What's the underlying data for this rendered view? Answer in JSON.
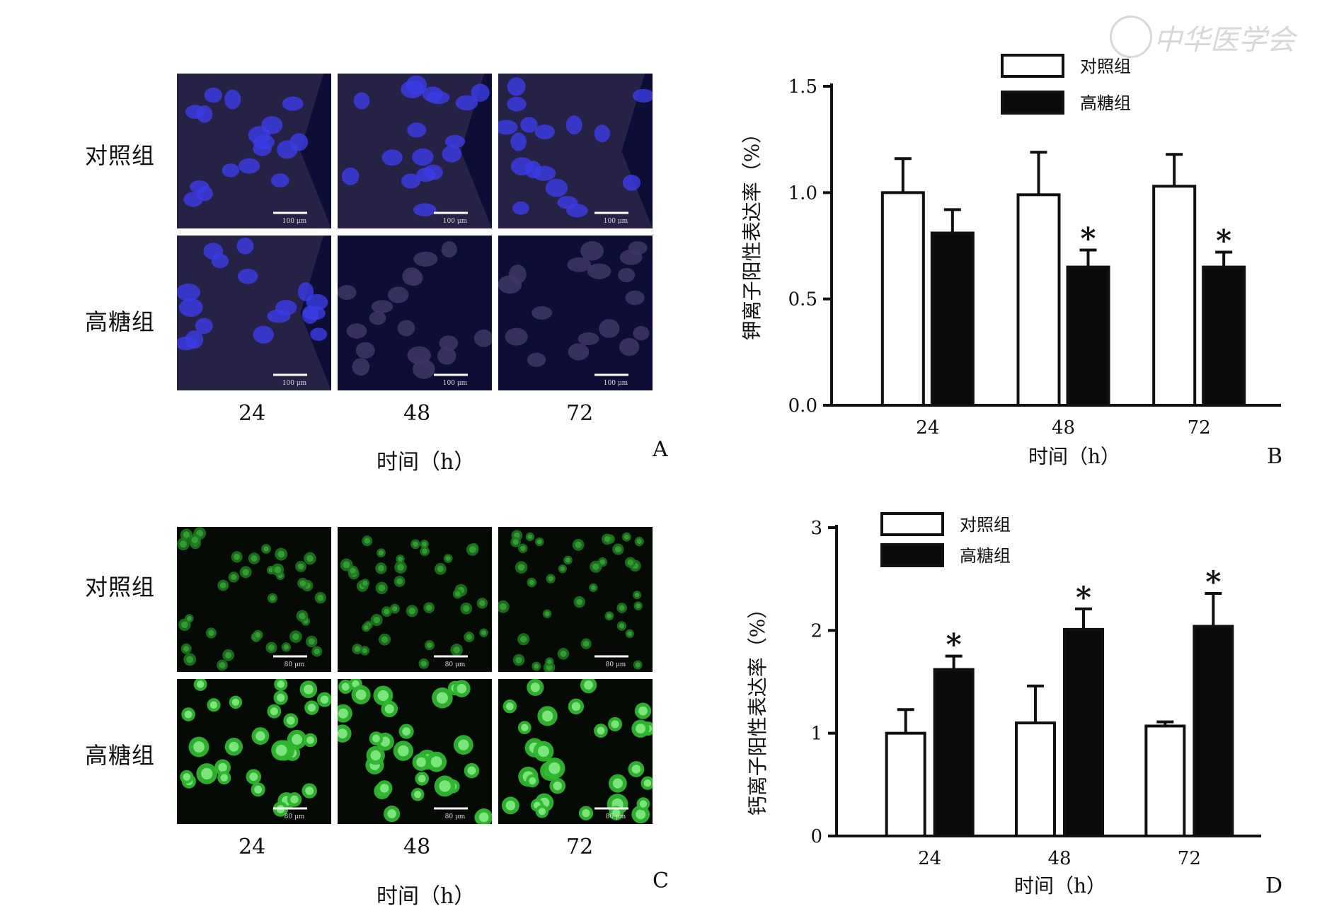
{
  "watermark": {
    "text": "中华医学会"
  },
  "panel_a": {
    "letter": "A",
    "rows": [
      "对照组",
      "高糖组"
    ],
    "cols": [
      "24",
      "48",
      "72"
    ],
    "xlabel": "时间（h）",
    "scale_label": "100 μm",
    "colors": {
      "bg": "#262246",
      "dark": "#0d0d35",
      "cell": "#3c3ce6"
    }
  },
  "panel_c": {
    "letter": "C",
    "rows": [
      "对照组",
      "高糖组"
    ],
    "cols": [
      "24",
      "48",
      "72"
    ],
    "xlabel": "时间（h）",
    "scale_label": "80 μm",
    "colors": {
      "bg": "#050a05",
      "cell": "#3fd23f"
    }
  },
  "chart_data": [
    {
      "type": "bar",
      "panel": "B",
      "categories": [
        "24",
        "48",
        "72"
      ],
      "series": [
        {
          "name": "对照组",
          "values": [
            1.0,
            0.99,
            1.03
          ],
          "errors": [
            0.16,
            0.2,
            0.15
          ],
          "color": "#ffffff"
        },
        {
          "name": "高糖组",
          "values": [
            0.81,
            0.65,
            0.65
          ],
          "errors": [
            0.11,
            0.08,
            0.07
          ],
          "color": "#0a0a0a"
        }
      ],
      "significance": [
        false,
        true,
        true
      ],
      "sig_mark": "*",
      "ylim": [
        0,
        1.5
      ],
      "yticks": [
        "0.0",
        "0.5",
        "1.0",
        "1.5"
      ],
      "ylabel": "钾离子阳性表达率（%）",
      "xlabel": "时间（h）",
      "legend": "top-right"
    },
    {
      "type": "bar",
      "panel": "D",
      "categories": [
        "24",
        "48",
        "72"
      ],
      "series": [
        {
          "name": "对照组",
          "values": [
            1.0,
            1.1,
            1.07
          ],
          "errors": [
            0.23,
            0.36,
            0.04
          ],
          "color": "#ffffff"
        },
        {
          "name": "高糖组",
          "values": [
            1.62,
            2.01,
            2.04
          ],
          "errors": [
            0.13,
            0.2,
            0.32
          ],
          "color": "#0a0a0a"
        }
      ],
      "significance": [
        true,
        true,
        true
      ],
      "sig_mark": "*",
      "ylim": [
        0,
        3
      ],
      "yticks": [
        "0",
        "1",
        "2",
        "3"
      ],
      "ylabel": "钙离子阳性表达率（%）",
      "xlabel": "时间（h）",
      "legend": "top-left"
    }
  ]
}
